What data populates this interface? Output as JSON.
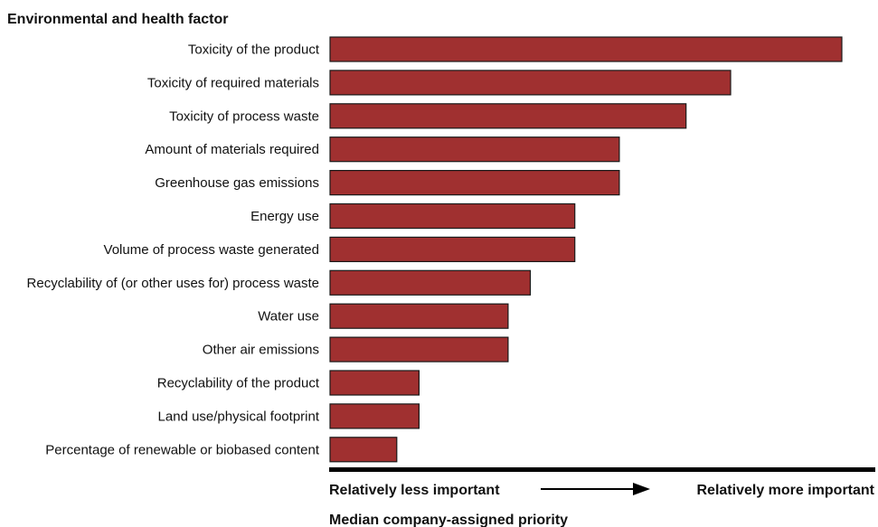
{
  "chart_data": {
    "type": "bar",
    "orientation": "horizontal",
    "title": "Environmental and health factor",
    "categories": [
      "Toxicity of the product",
      "Toxicity of required materials",
      "Toxicity of process waste",
      "Amount of materials required",
      "Greenhouse gas emissions",
      "Energy use",
      "Volume of process waste generated",
      "Recyclability of (or other uses for) process waste",
      "Water use",
      "Other air emissions",
      "Recyclability of the product",
      "Land use/physical footprint",
      "Percentage of renewable or biobased content"
    ],
    "values": [
      23,
      18,
      16,
      13,
      13,
      11,
      11,
      9,
      8,
      8,
      4,
      4,
      3
    ],
    "xlim": [
      0,
      23
    ],
    "x_axis": {
      "low_label": "Relatively less important",
      "high_label": "Relatively more important",
      "title": "Median company-assigned priority",
      "tick_labels": false
    },
    "grid": false,
    "legend": "none",
    "bar_color": "#a03030",
    "bar_edge_color": "#1a1a1a"
  }
}
